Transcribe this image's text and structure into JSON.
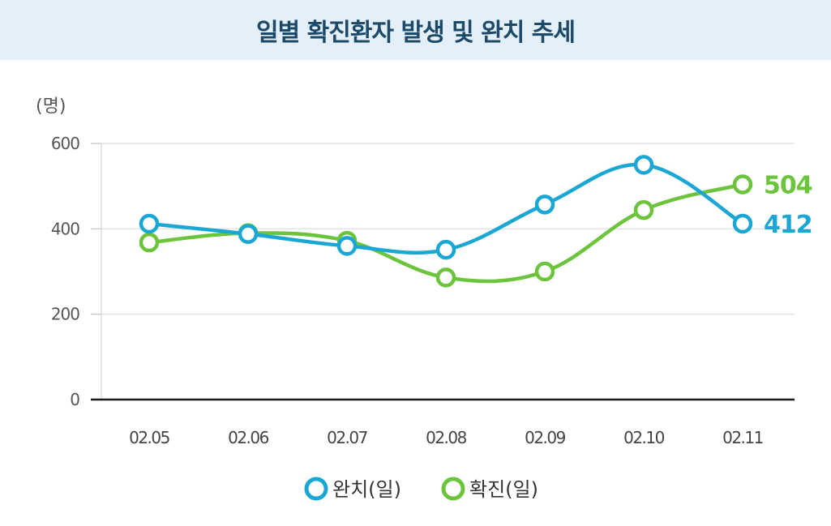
{
  "header": {
    "title": "일별 확진환자 발생 및 완치 추세"
  },
  "chart_data": {
    "type": "line",
    "title": "일별 확진환자 발생 및 완치 추세",
    "unit_label": "(명)",
    "categories": [
      "02.05",
      "02.06",
      "02.07",
      "02.08",
      "02.09",
      "02.10",
      "02.11"
    ],
    "ylim": [
      0,
      600
    ],
    "yticks": [
      0,
      200,
      400,
      600
    ],
    "grid": true,
    "legend_position": "bottom",
    "series": [
      {
        "name": "완치(일)",
        "color": "#1aa7d4",
        "values": [
          412,
          388,
          360,
          351,
          457,
          550,
          412
        ],
        "end_label": "412"
      },
      {
        "name": "확진(일)",
        "color": "#6cc43c",
        "values": [
          368,
          390,
          372,
          286,
          300,
          444,
          504
        ],
        "end_label": "504"
      }
    ]
  }
}
